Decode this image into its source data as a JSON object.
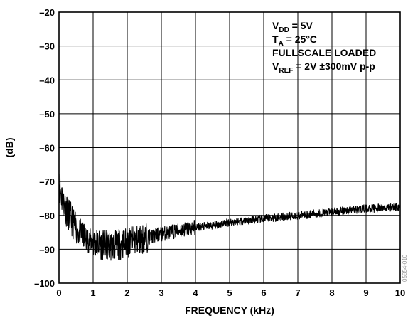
{
  "chart_data": {
    "type": "line",
    "title": "",
    "xlabel": "FREQUENCY (kHz)",
    "ylabel": "(dB)",
    "xlim": [
      0,
      10
    ],
    "ylim": [
      -100,
      -20
    ],
    "xticks": [
      "0",
      "1",
      "2",
      "3",
      "4",
      "5",
      "6",
      "7",
      "8",
      "9",
      "10"
    ],
    "yticks": [
      "–20",
      "–30",
      "–40",
      "–50",
      "–60",
      "–70",
      "–80",
      "–90",
      "–100"
    ],
    "grid": true,
    "legend": "none",
    "series": [
      {
        "color": "#000000",
        "x": [
          0,
          0.05,
          0.1,
          0.2,
          0.3,
          0.4,
          0.5,
          0.6,
          0.7,
          0.8,
          0.9,
          1.0,
          1.2,
          1.4,
          1.6,
          1.8,
          2.0,
          2.2,
          2.4,
          2.6,
          2.8,
          3.0,
          3.5,
          4.0,
          4.5,
          5.0,
          5.5,
          6.0,
          6.5,
          7.0,
          7.5,
          8.0,
          8.5,
          9.0,
          9.5,
          10.0
        ],
        "y": [
          -70,
          -73,
          -75,
          -78,
          -80,
          -82,
          -84,
          -85,
          -86,
          -87,
          -87.5,
          -88,
          -88.5,
          -89,
          -89,
          -88.5,
          -88,
          -87.5,
          -87,
          -86.5,
          -86,
          -85.5,
          -84.5,
          -83.5,
          -83,
          -82,
          -81.5,
          -81,
          -80.5,
          -80,
          -79.5,
          -79,
          -78.5,
          -78,
          -77.8,
          -77.5
        ]
      }
    ],
    "annotations": [
      {
        "main": "V",
        "sub": "DD",
        "rest": " = 5V"
      },
      {
        "main": "T",
        "sub": "A",
        "rest": " = 25°C"
      },
      {
        "main": "FULLSCALE LOADED",
        "sub": "",
        "rest": ""
      },
      {
        "main": "V",
        "sub": "REF",
        "rest": " = 2V ±300mV p-p"
      }
    ],
    "figure_id": "05854-010"
  }
}
